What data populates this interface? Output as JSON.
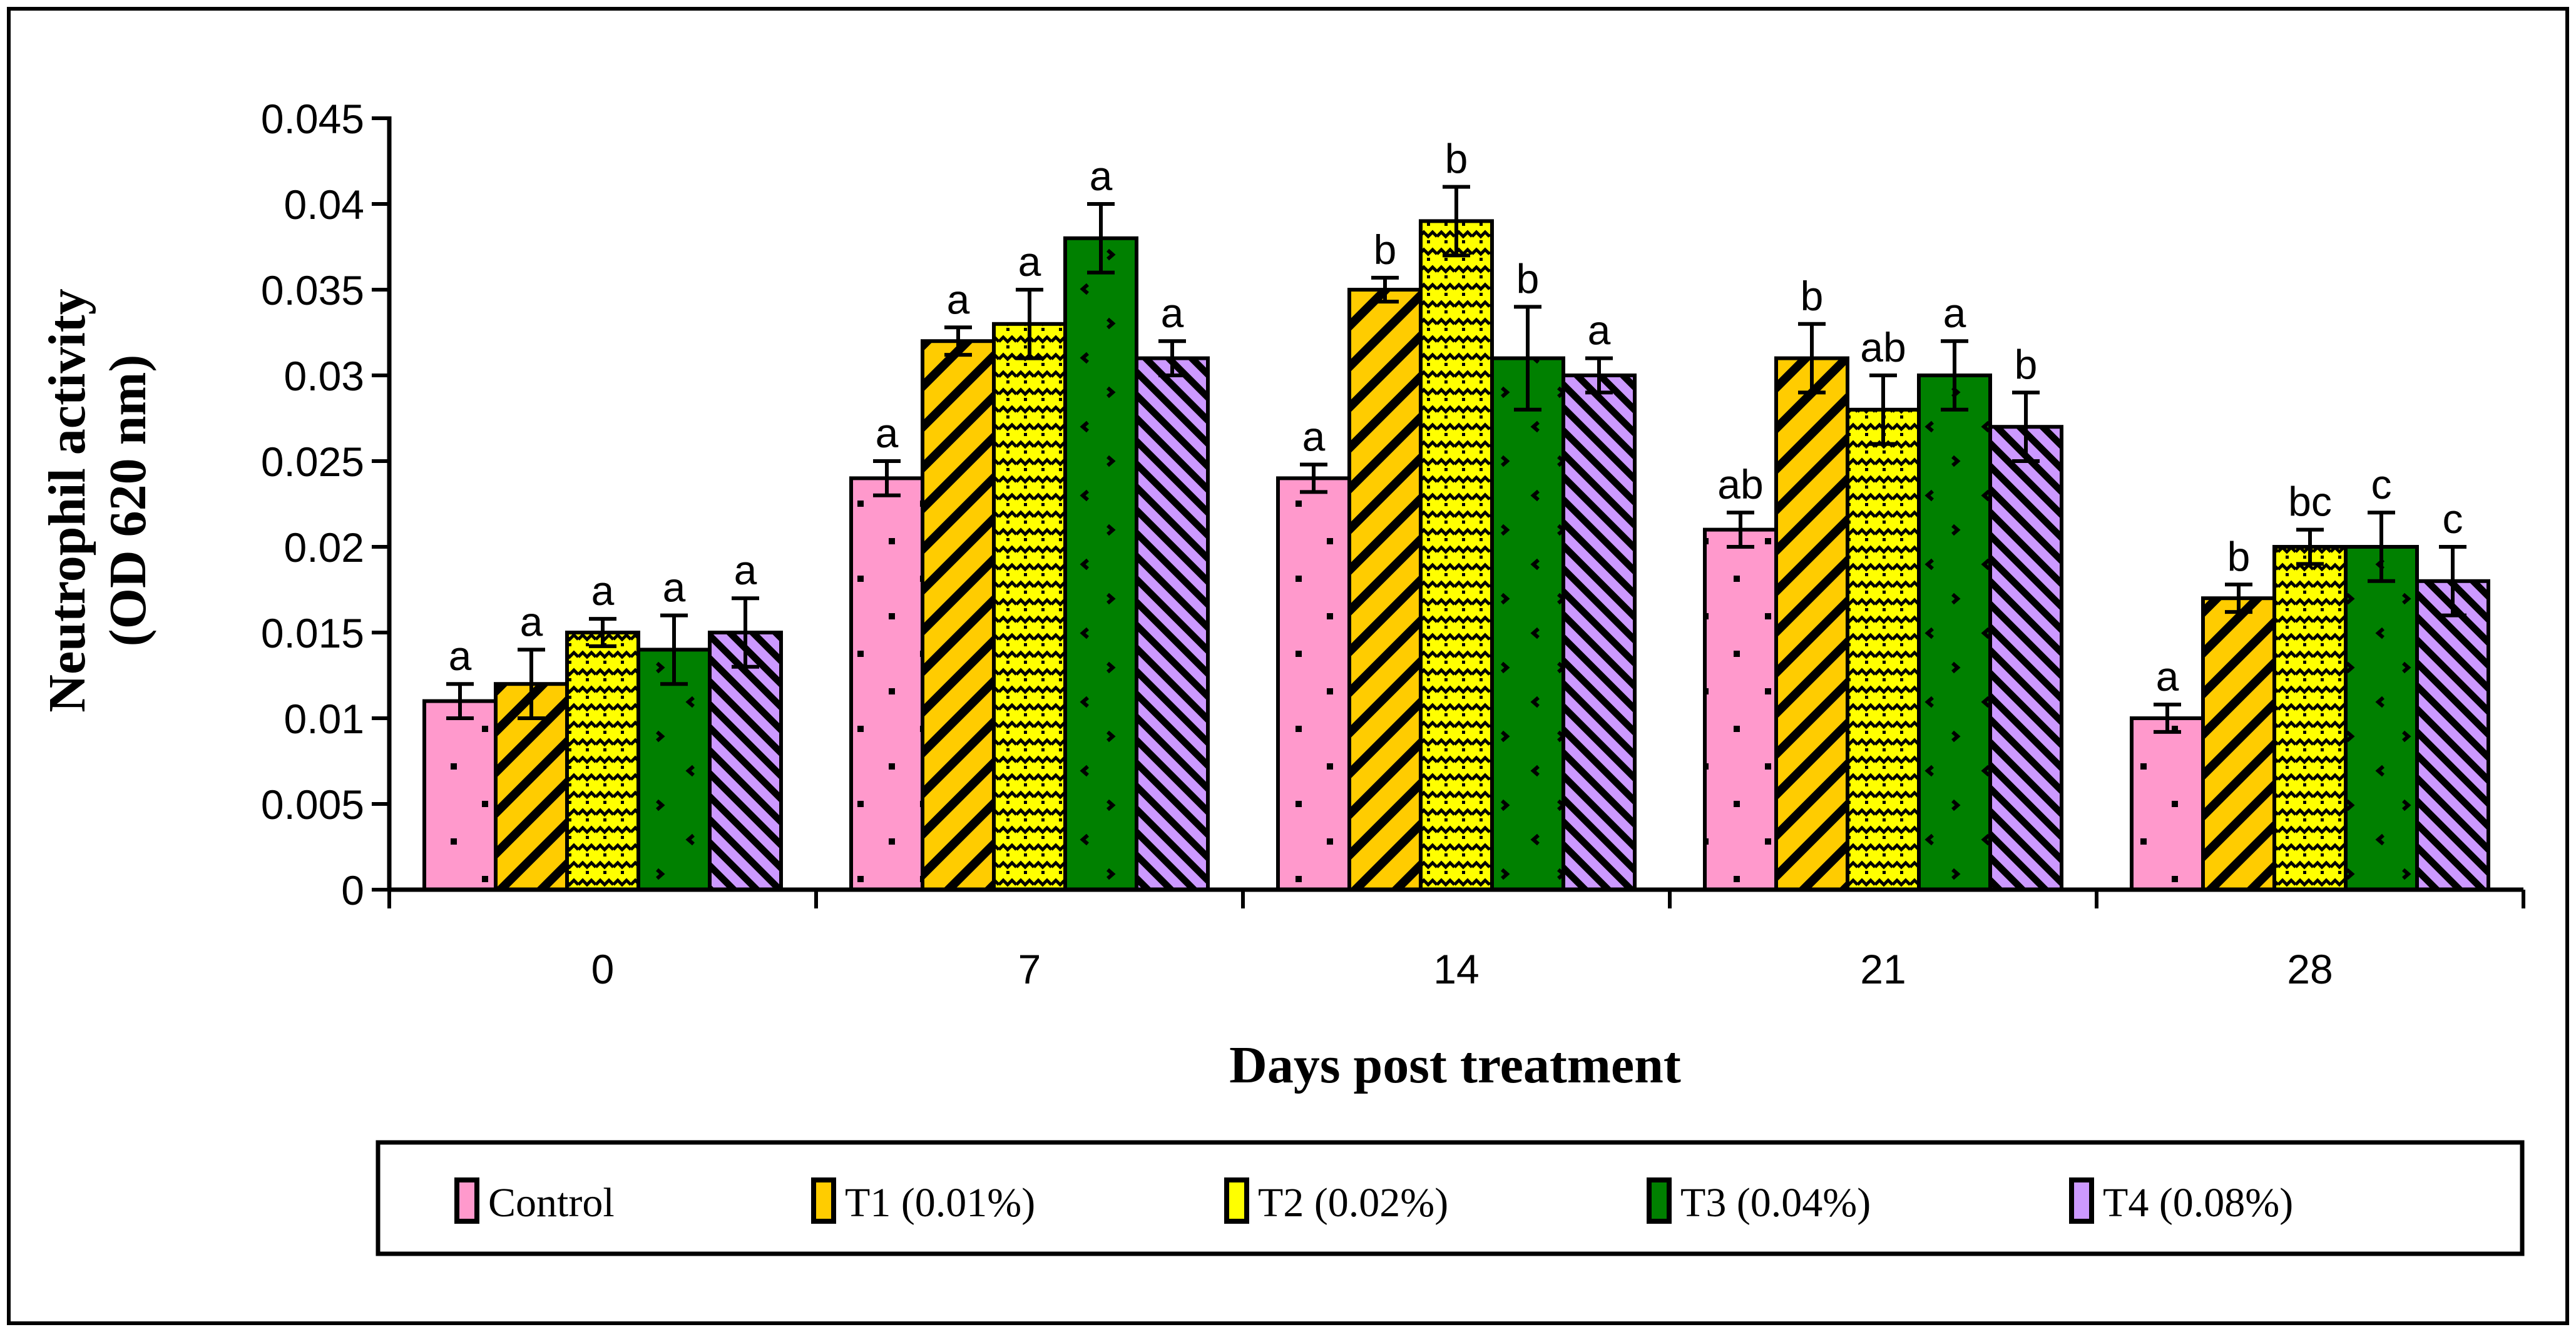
{
  "chart_data": {
    "type": "bar",
    "title": "",
    "xlabel": "Days post treatment",
    "ylabel_lines": [
      "Neutrophil activity",
      "(OD 620 nm)"
    ],
    "ylim": [
      0,
      0.045
    ],
    "yticks": [
      "0",
      "0.005",
      "0.01",
      "0.015",
      "0.02",
      "0.025",
      "0.03",
      "0.035",
      "0.04",
      "0.045"
    ],
    "categories": [
      "0",
      "7",
      "14",
      "21",
      "28"
    ],
    "legend_position": "bottom",
    "series": [
      {
        "name": "Control",
        "color": "#ff99cc",
        "pattern": "dots",
        "values": [
          0.011,
          0.024,
          0.024,
          0.021,
          0.01
        ],
        "errors": [
          0.001,
          0.001,
          0.0008,
          0.001,
          0.0008
        ],
        "letters": [
          "a",
          "a",
          "a",
          "ab",
          "a"
        ]
      },
      {
        "name": "T1 (0.01%)",
        "color": "#ffcc00",
        "pattern": "wide-diagonal",
        "values": [
          0.012,
          0.032,
          0.035,
          0.031,
          0.017
        ],
        "errors": [
          0.002,
          0.0008,
          0.0007,
          0.002,
          0.0008
        ],
        "letters": [
          "a",
          "a",
          "b",
          "b",
          "b"
        ]
      },
      {
        "name": "T2 (0.02%)",
        "color": "#ffff00",
        "pattern": "zigzag",
        "values": [
          0.015,
          0.033,
          0.039,
          0.028,
          0.02
        ],
        "errors": [
          0.0008,
          0.002,
          0.002,
          0.002,
          0.001
        ],
        "letters": [
          "a",
          "a",
          "b",
          "ab",
          "bc"
        ]
      },
      {
        "name": "T3 (0.04%)",
        "color": "#008000",
        "pattern": "sparse",
        "values": [
          0.014,
          0.038,
          0.031,
          0.03,
          0.02
        ],
        "errors": [
          0.002,
          0.002,
          0.003,
          0.002,
          0.002
        ],
        "letters": [
          "a",
          "a",
          "b",
          "a",
          "c"
        ]
      },
      {
        "name": "T4 (0.08%)",
        "color": "#cc99ff",
        "pattern": "narrow-diagonal",
        "values": [
          0.015,
          0.031,
          0.03,
          0.027,
          0.018
        ],
        "errors": [
          0.002,
          0.001,
          0.001,
          0.002,
          0.002
        ],
        "letters": [
          "a",
          "a",
          "a",
          "b",
          "c"
        ]
      }
    ]
  }
}
